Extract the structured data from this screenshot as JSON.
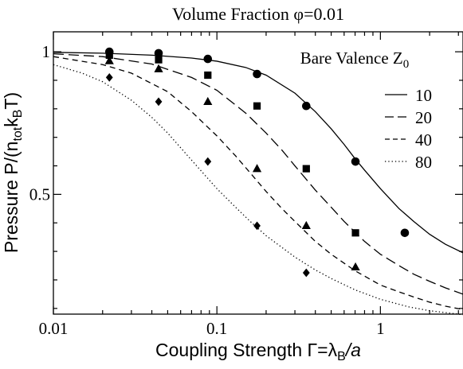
{
  "chart_data": {
    "type": "line",
    "title": "Volume Fraction  φ=0.01",
    "xlabel": {
      "pre": "Coupling Strength  Γ=λ",
      "sub": "B",
      "post": "/a"
    },
    "ylabel": {
      "p1": "Pressure  P/(n",
      "s1": "tot",
      "p2": "k",
      "s2": "B",
      "p3": "T)"
    },
    "xscale": "log",
    "xlim": [
      0.01,
      3.2
    ],
    "ylim": [
      0.08,
      1.07
    ],
    "x_ticks": [
      {
        "value": 0.01,
        "label": "0.01"
      },
      {
        "value": 0.1,
        "label": "0.1"
      },
      {
        "value": 1,
        "label": "1"
      }
    ],
    "y_ticks": [
      {
        "value": 0.5,
        "label": "0.5"
      },
      {
        "value": 1,
        "label": "1"
      }
    ],
    "legend": {
      "title_main": "Bare Valence Z",
      "title_sub": "0",
      "placement": "top-right"
    },
    "series": [
      {
        "name": "10",
        "line_style": "solid",
        "marker": "circle",
        "curve_x": [
          0.01,
          0.02,
          0.04,
          0.07,
          0.1,
          0.15,
          0.2,
          0.3,
          0.4,
          0.5,
          0.6,
          0.7,
          0.8,
          1.0,
          1.3,
          1.6,
          2.0,
          2.5,
          3.2
        ],
        "curve_y": [
          0.998,
          0.995,
          0.988,
          0.978,
          0.967,
          0.945,
          0.918,
          0.855,
          0.79,
          0.73,
          0.675,
          0.625,
          0.585,
          0.52,
          0.45,
          0.405,
          0.36,
          0.325,
          0.295
        ],
        "points_x": [
          0.022,
          0.044,
          0.088,
          0.176,
          0.352,
          0.704,
          1.41
        ],
        "points_y": [
          1.0,
          0.995,
          0.975,
          0.922,
          0.81,
          0.615,
          0.365
        ]
      },
      {
        "name": "20",
        "line_style": "long-dash",
        "marker": "square",
        "curve_x": [
          0.01,
          0.02,
          0.04,
          0.07,
          0.1,
          0.15,
          0.2,
          0.25,
          0.3,
          0.4,
          0.5,
          0.6,
          0.8,
          1.0,
          1.3,
          1.6,
          2.0,
          2.5,
          3.2
        ],
        "curve_y": [
          0.993,
          0.983,
          0.957,
          0.91,
          0.865,
          0.785,
          0.715,
          0.655,
          0.6,
          0.515,
          0.455,
          0.405,
          0.335,
          0.29,
          0.25,
          0.22,
          0.195,
          0.172,
          0.15
        ],
        "points_x": [
          0.022,
          0.044,
          0.088,
          0.176,
          0.352,
          0.704
        ],
        "points_y": [
          0.988,
          0.972,
          0.918,
          0.81,
          0.59,
          0.365
        ]
      },
      {
        "name": "40",
        "line_style": "dash",
        "marker": "triangle",
        "curve_x": [
          0.01,
          0.02,
          0.03,
          0.05,
          0.07,
          0.1,
          0.13,
          0.16,
          0.2,
          0.25,
          0.3,
          0.4,
          0.5,
          0.7,
          1.0,
          1.3,
          1.6,
          2.0,
          2.5,
          3.2
        ],
        "curve_y": [
          0.983,
          0.955,
          0.925,
          0.86,
          0.79,
          0.705,
          0.635,
          0.575,
          0.51,
          0.45,
          0.405,
          0.335,
          0.29,
          0.232,
          0.182,
          0.158,
          0.14,
          0.122,
          0.108,
          0.096
        ],
        "points_x": [
          0.022,
          0.044,
          0.088,
          0.176,
          0.352,
          0.704
        ],
        "points_y": [
          0.968,
          0.94,
          0.825,
          0.59,
          0.39,
          0.245
        ]
      },
      {
        "name": "80",
        "line_style": "dotted",
        "marker": "diamond",
        "curve_x": [
          0.01,
          0.015,
          0.02,
          0.03,
          0.04,
          0.05,
          0.07,
          0.1,
          0.13,
          0.16,
          0.2,
          0.3,
          0.4,
          0.5,
          0.7,
          1.0,
          1.5,
          2.0,
          3.2
        ],
        "curve_y": [
          0.955,
          0.925,
          0.895,
          0.83,
          0.77,
          0.715,
          0.62,
          0.52,
          0.455,
          0.405,
          0.355,
          0.28,
          0.235,
          0.205,
          0.165,
          0.132,
          0.105,
          0.092,
          0.078
        ],
        "points_x": [
          0.022,
          0.044,
          0.088,
          0.176,
          0.352
        ],
        "points_y": [
          0.91,
          0.825,
          0.615,
          0.39,
          0.225
        ]
      }
    ]
  }
}
